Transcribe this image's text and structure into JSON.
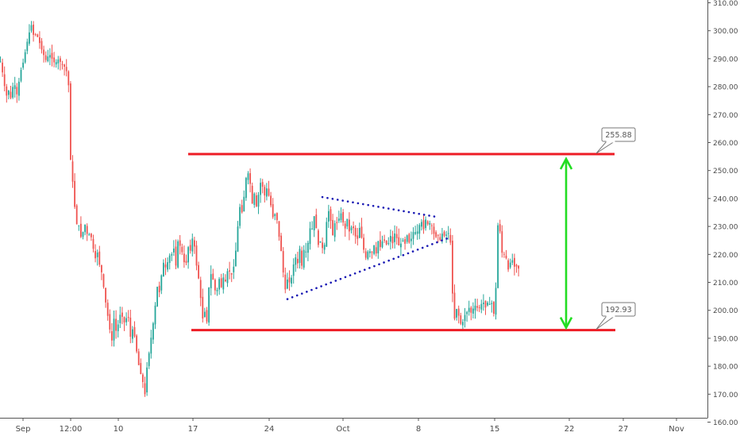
{
  "chart_data": {
    "type": "line",
    "style": "candlestick",
    "x_ticks": [
      "Sep",
      "12:00",
      "10",
      "17",
      "24",
      "Oct",
      "8",
      "15",
      "22",
      "27",
      "Nov"
    ],
    "y_ticks": [
      "160.00",
      "170.00",
      "180.00",
      "190.00",
      "200.00",
      "210.00",
      "220.00",
      "230.00",
      "240.00",
      "250.00",
      "260.00",
      "270.00",
      "280.00",
      "290.00",
      "300.00",
      "310.00"
    ],
    "ylim": [
      159,
      312
    ],
    "price_path": [
      [
        0,
        289
      ],
      [
        4,
        283
      ],
      [
        7,
        276
      ],
      [
        10,
        279
      ],
      [
        13,
        276
      ],
      [
        17,
        282
      ],
      [
        21,
        277
      ],
      [
        25,
        285
      ],
      [
        29,
        289
      ],
      [
        33,
        295
      ],
      [
        36,
        299
      ],
      [
        39,
        302
      ],
      [
        42,
        298
      ],
      [
        45,
        299
      ],
      [
        48,
        297
      ],
      [
        51,
        294
      ],
      [
        55,
        291
      ],
      [
        58,
        289
      ],
      [
        61,
        292
      ],
      [
        65,
        290
      ],
      [
        69,
        288
      ],
      [
        72,
        290
      ],
      [
        75,
        289
      ],
      [
        78,
        288
      ],
      [
        81,
        287
      ],
      [
        84,
        285
      ],
      [
        86,
        280
      ],
      [
        87,
        258
      ],
      [
        89,
        252
      ],
      [
        91,
        246
      ],
      [
        93,
        240
      ],
      [
        95,
        230
      ],
      [
        98,
        232
      ],
      [
        101,
        226
      ],
      [
        104,
        228
      ],
      [
        107,
        231
      ],
      [
        110,
        226
      ],
      [
        113,
        228
      ],
      [
        116,
        224
      ],
      [
        119,
        218
      ],
      [
        122,
        221
      ],
      [
        125,
        216
      ],
      [
        128,
        213
      ],
      [
        131,
        206
      ],
      [
        134,
        200
      ],
      [
        137,
        195
      ],
      [
        140,
        188
      ],
      [
        143,
        197
      ],
      [
        146,
        192
      ],
      [
        149,
        196
      ],
      [
        152,
        200
      ],
      [
        155,
        195
      ],
      [
        158,
        197
      ],
      [
        161,
        198
      ],
      [
        164,
        190
      ],
      [
        167,
        194
      ],
      [
        170,
        189
      ],
      [
        173,
        182
      ],
      [
        176,
        178
      ],
      [
        179,
        175
      ],
      [
        182,
        170
      ],
      [
        185,
        181
      ],
      [
        188,
        186
      ],
      [
        191,
        193
      ],
      [
        194,
        198
      ],
      [
        197,
        209
      ],
      [
        200,
        206
      ],
      [
        203,
        213
      ],
      [
        206,
        218
      ],
      [
        209,
        214
      ],
      [
        212,
        220
      ],
      [
        215,
        219
      ],
      [
        218,
        223
      ],
      [
        221,
        216
      ],
      [
        224,
        226
      ],
      [
        227,
        222
      ],
      [
        230,
        220
      ],
      [
        233,
        214
      ],
      [
        236,
        223
      ],
      [
        239,
        221
      ],
      [
        242,
        226
      ],
      [
        245,
        222
      ],
      [
        248,
        213
      ],
      [
        251,
        210
      ],
      [
        254,
        196
      ],
      [
        257,
        200
      ],
      [
        260,
        196
      ],
      [
        263,
        210
      ],
      [
        266,
        214
      ],
      [
        269,
        209
      ],
      [
        272,
        205
      ],
      [
        275,
        212
      ],
      [
        278,
        208
      ],
      [
        281,
        212
      ],
      [
        284,
        210
      ],
      [
        287,
        216
      ],
      [
        290,
        212
      ],
      [
        293,
        214
      ],
      [
        296,
        220
      ],
      [
        299,
        230
      ],
      [
        302,
        238
      ],
      [
        305,
        234
      ],
      [
        308,
        245
      ],
      [
        311,
        250
      ],
      [
        314,
        247
      ],
      [
        317,
        238
      ],
      [
        320,
        242
      ],
      [
        323,
        236
      ],
      [
        326,
        244
      ],
      [
        329,
        247
      ],
      [
        332,
        240
      ],
      [
        335,
        244
      ],
      [
        338,
        241
      ],
      [
        341,
        237
      ],
      [
        344,
        232
      ],
      [
        347,
        236
      ],
      [
        350,
        228
      ],
      [
        353,
        223
      ],
      [
        356,
        214
      ],
      [
        359,
        207
      ],
      [
        362,
        212
      ],
      [
        365,
        209
      ],
      [
        368,
        214
      ],
      [
        371,
        220
      ],
      [
        374,
        216
      ],
      [
        377,
        222
      ],
      [
        380,
        215
      ],
      [
        383,
        224
      ],
      [
        386,
        219
      ],
      [
        389,
        230
      ],
      [
        392,
        228
      ],
      [
        395,
        234
      ],
      [
        398,
        229
      ],
      [
        401,
        222
      ],
      [
        404,
        226
      ],
      [
        407,
        219
      ],
      [
        410,
        230
      ],
      [
        413,
        236
      ],
      [
        416,
        232
      ],
      [
        419,
        226
      ],
      [
        422,
        233
      ],
      [
        425,
        230
      ],
      [
        428,
        236
      ],
      [
        431,
        232
      ],
      [
        434,
        229
      ],
      [
        437,
        233
      ],
      [
        440,
        227
      ],
      [
        443,
        231
      ],
      [
        446,
        228
      ],
      [
        449,
        224
      ],
      [
        452,
        230
      ],
      [
        455,
        226
      ],
      [
        458,
        221
      ],
      [
        461,
        218
      ],
      [
        464,
        223
      ],
      [
        467,
        219
      ],
      [
        470,
        224
      ],
      [
        473,
        220
      ],
      [
        476,
        225
      ],
      [
        479,
        222
      ],
      [
        482,
        226
      ],
      [
        485,
        224
      ],
      [
        488,
        223
      ],
      [
        491,
        227
      ],
      [
        494,
        224
      ],
      [
        497,
        228
      ],
      [
        500,
        225
      ],
      [
        503,
        222
      ],
      [
        506,
        226
      ],
      [
        509,
        223
      ],
      [
        512,
        227
      ],
      [
        515,
        224
      ],
      [
        518,
        226
      ],
      [
        521,
        229
      ],
      [
        524,
        227
      ],
      [
        527,
        230
      ],
      [
        530,
        232
      ],
      [
        533,
        229
      ],
      [
        536,
        233
      ],
      [
        539,
        230
      ],
      [
        542,
        232
      ],
      [
        545,
        228
      ],
      [
        548,
        226
      ],
      [
        551,
        227
      ],
      [
        554,
        225
      ],
      [
        557,
        228
      ],
      [
        560,
        226
      ],
      [
        563,
        228
      ],
      [
        566,
        227
      ],
      [
        568,
        220
      ],
      [
        570,
        200
      ],
      [
        572,
        197
      ],
      [
        575,
        201
      ],
      [
        578,
        197
      ],
      [
        581,
        194
      ],
      [
        584,
        198
      ],
      [
        587,
        199
      ],
      [
        590,
        201
      ],
      [
        593,
        199
      ],
      [
        596,
        201
      ],
      [
        599,
        202
      ],
      [
        602,
        200
      ],
      [
        605,
        202
      ],
      [
        608,
        203
      ],
      [
        611,
        201
      ],
      [
        614,
        203
      ],
      [
        617,
        202
      ],
      [
        620,
        203
      ],
      [
        622,
        197
      ],
      [
        624,
        208
      ],
      [
        626,
        228
      ],
      [
        628,
        236
      ],
      [
        630,
        223
      ],
      [
        633,
        219
      ],
      [
        636,
        221
      ],
      [
        639,
        214
      ],
      [
        642,
        217
      ],
      [
        645,
        218
      ],
      [
        648,
        215
      ],
      [
        651,
        216
      ],
      [
        654,
        214
      ]
    ],
    "annotations": {
      "resistance_level": 255.88,
      "support_level": 192.93,
      "resistance_label": "255.88",
      "support_label": "192.93"
    },
    "trendlines": {
      "upper": [
        [
          406,
          240.5
        ],
        [
          548,
          233.5
        ]
      ],
      "lower": [
        [
          362,
          204
        ],
        [
          566,
          226
        ]
      ]
    },
    "levels_x": {
      "resistance": [
        237,
        774
      ],
      "support": [
        241,
        775
      ]
    },
    "arrow_x": 713,
    "colors": {
      "up": "#26a69a",
      "down": "#ef5350",
      "level": "#ee1c25",
      "arrow": "#22dd22",
      "trend": "#1a1ab4",
      "axis_text": "#4a4a4a",
      "axis_line": "#555555"
    },
    "grid": false,
    "legend": "none",
    "title": "",
    "xlabel": "",
    "ylabel": ""
  }
}
